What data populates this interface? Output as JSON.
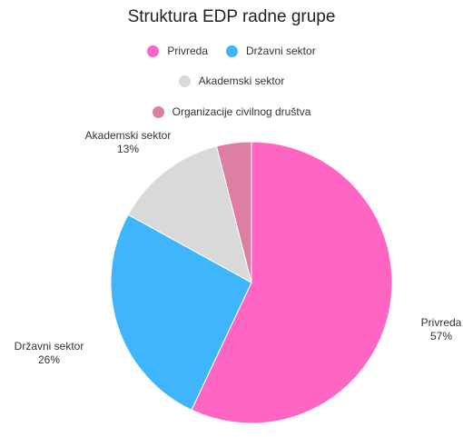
{
  "chart_data": {
    "type": "pie",
    "title": "Struktura EDP radne grupe",
    "legend_position": "top",
    "slices": [
      {
        "label": "Privreda",
        "value": 57,
        "display": "57%",
        "color": "#ff66c4"
      },
      {
        "label": "Državni sektor",
        "value": 26,
        "display": "26%",
        "color": "#3fb6fb"
      },
      {
        "label": "Akademski sektor",
        "value": 13,
        "display": "13%",
        "color": "#d9d9d9"
      },
      {
        "label": "Organizacije civilnog društva",
        "value": 4,
        "display": "",
        "color": "#dd7fa2"
      }
    ]
  }
}
